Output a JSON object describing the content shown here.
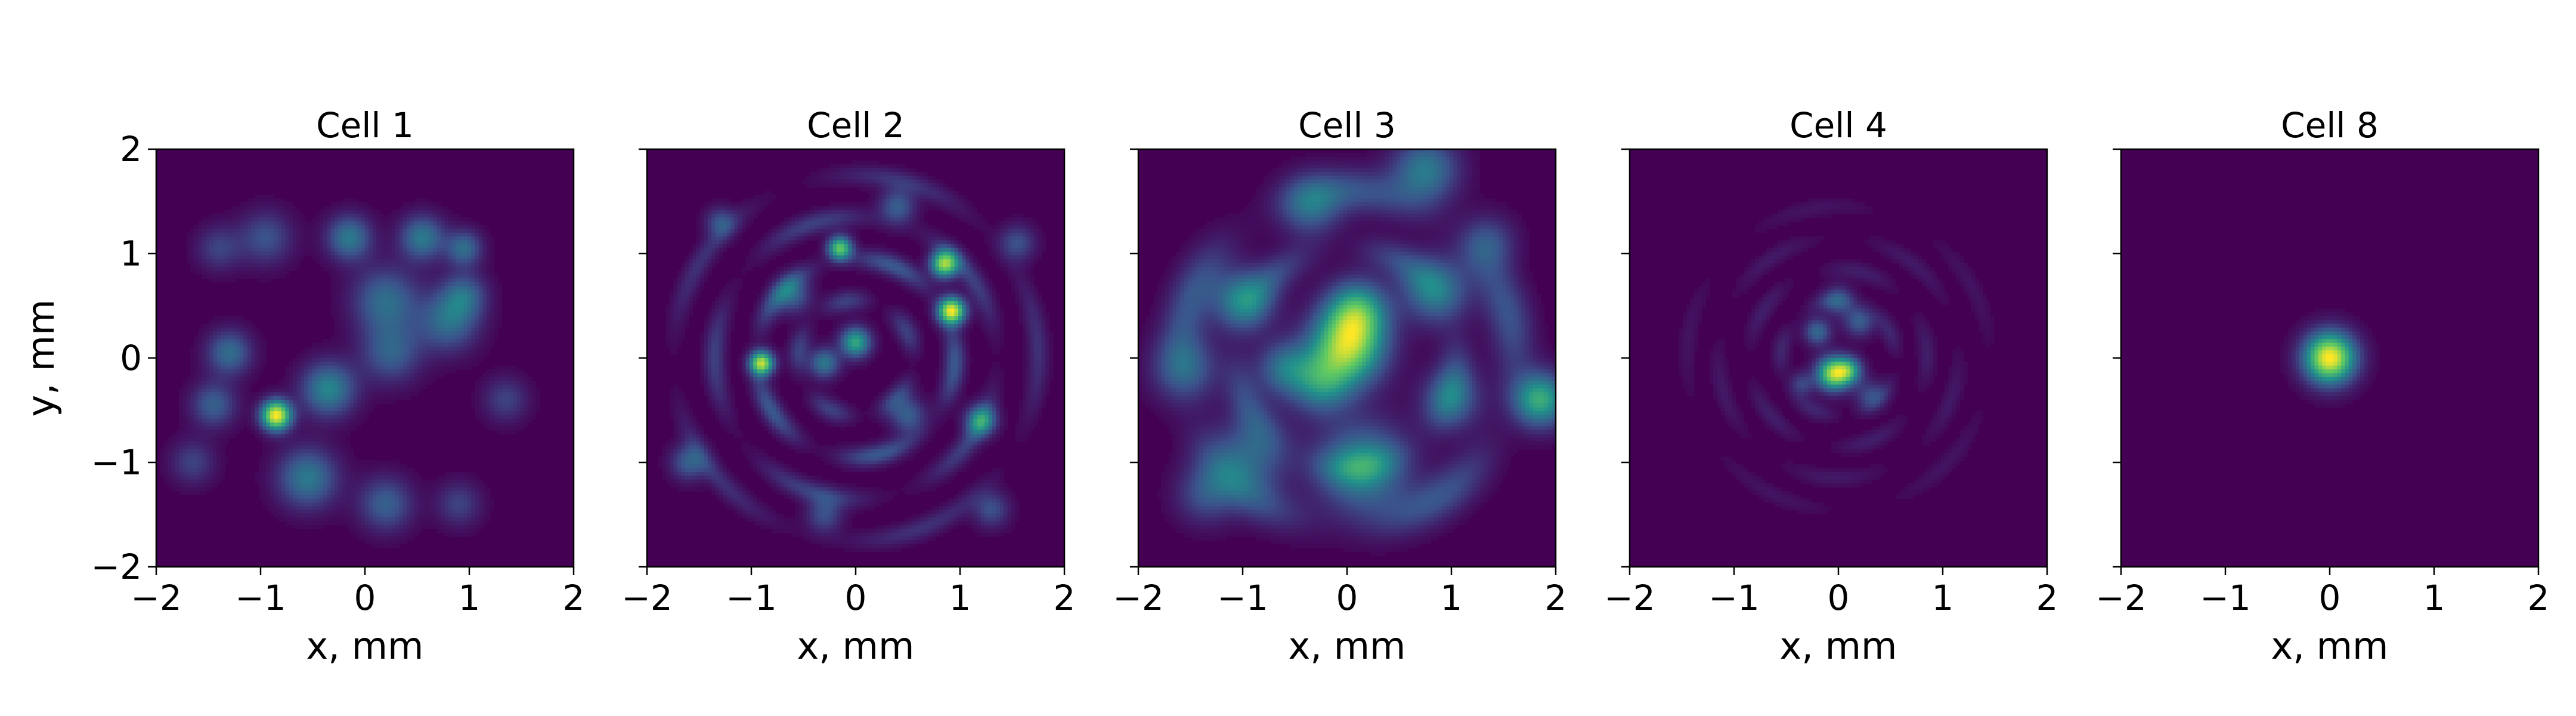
{
  "chart_data": {
    "type": "heatmap",
    "colormap": "viridis",
    "colors": [
      "#440154",
      "#3b528b",
      "#21918c",
      "#5ec962",
      "#fde725"
    ],
    "xlabel": "x, mm",
    "ylabel": "y, mm",
    "xlim": [
      -2,
      2
    ],
    "ylim": [
      -2,
      2
    ],
    "xticks": [
      -2,
      -1,
      0,
      1,
      2
    ],
    "yticks": [
      -2,
      -1,
      0,
      1,
      2
    ],
    "xtick_labels": [
      "−2",
      "−1",
      "0",
      "1",
      "2"
    ],
    "ytick_labels": [
      "−2",
      "−1",
      "0",
      "1",
      "2"
    ],
    "grid": false,
    "panels": [
      {
        "title": "Cell 1",
        "peaks": [
          {
            "x": -0.85,
            "y": -0.55,
            "sigma": 0.1,
            "intensity": 1.0
          },
          {
            "x": -0.35,
            "y": -0.3,
            "sigma": 0.18,
            "intensity": 0.45
          },
          {
            "x": -0.55,
            "y": -1.15,
            "sigma": 0.2,
            "intensity": 0.4
          },
          {
            "x": -1.3,
            "y": 0.05,
            "sigma": 0.15,
            "intensity": 0.35
          },
          {
            "x": -1.45,
            "y": -0.45,
            "sigma": 0.15,
            "intensity": 0.3
          },
          {
            "x": -0.15,
            "y": 1.15,
            "sigma": 0.15,
            "intensity": 0.4
          },
          {
            "x": 0.55,
            "y": 1.15,
            "sigma": 0.15,
            "intensity": 0.4
          },
          {
            "x": 0.95,
            "y": 1.05,
            "sigma": 0.12,
            "intensity": 0.35
          },
          {
            "x": 0.2,
            "y": 0.55,
            "sigma": 0.22,
            "intensity": 0.35
          },
          {
            "x": 0.25,
            "y": 0.05,
            "sigma": 0.2,
            "intensity": 0.3
          },
          {
            "x": 0.8,
            "y": 0.35,
            "sigma": 0.2,
            "intensity": 0.35
          },
          {
            "x": 0.95,
            "y": 0.6,
            "sigma": 0.15,
            "intensity": 0.3
          },
          {
            "x": -0.95,
            "y": 1.15,
            "sigma": 0.18,
            "intensity": 0.25
          },
          {
            "x": -1.4,
            "y": 1.05,
            "sigma": 0.15,
            "intensity": 0.2
          },
          {
            "x": 0.2,
            "y": -1.4,
            "sigma": 0.18,
            "intensity": 0.3
          },
          {
            "x": 0.9,
            "y": -1.4,
            "sigma": 0.15,
            "intensity": 0.2
          },
          {
            "x": 1.35,
            "y": -0.4,
            "sigma": 0.15,
            "intensity": 0.2
          },
          {
            "x": -1.65,
            "y": -1.0,
            "sigma": 0.15,
            "intensity": 0.2
          }
        ]
      },
      {
        "title": "Cell 2",
        "peaks": [
          {
            "x": 0.92,
            "y": 0.45,
            "sigma": 0.09,
            "intensity": 1.0
          },
          {
            "x": 0.85,
            "y": 0.9,
            "sigma": 0.09,
            "intensity": 0.85
          },
          {
            "x": -0.9,
            "y": -0.05,
            "sigma": 0.08,
            "intensity": 0.9
          },
          {
            "x": -0.15,
            "y": 1.05,
            "sigma": 0.08,
            "intensity": 0.75
          },
          {
            "x": 0.0,
            "y": 0.15,
            "sigma": 0.1,
            "intensity": 0.6
          },
          {
            "x": -0.3,
            "y": -0.05,
            "sigma": 0.1,
            "intensity": 0.4
          },
          {
            "x": 1.2,
            "y": -0.6,
            "sigma": 0.1,
            "intensity": 0.5
          },
          {
            "x": -0.6,
            "y": 0.6,
            "sigma": 0.12,
            "intensity": 0.3
          },
          {
            "x": 0.5,
            "y": -0.55,
            "sigma": 0.12,
            "intensity": 0.3
          },
          {
            "x": -1.6,
            "y": -1.0,
            "sigma": 0.12,
            "intensity": 0.3
          },
          {
            "x": 1.55,
            "y": 1.1,
            "sigma": 0.12,
            "intensity": 0.25
          },
          {
            "x": -1.3,
            "y": 1.3,
            "sigma": 0.1,
            "intensity": 0.25
          },
          {
            "x": 1.3,
            "y": -1.45,
            "sigma": 0.12,
            "intensity": 0.25
          },
          {
            "x": 0.4,
            "y": 1.45,
            "sigma": 0.12,
            "intensity": 0.3
          },
          {
            "x": -0.3,
            "y": -1.5,
            "sigma": 0.12,
            "intensity": 0.25
          }
        ],
        "rings": [
          {
            "radius": 0.95,
            "width": 0.07,
            "intensity": 0.28
          },
          {
            "radius": 1.35,
            "width": 0.07,
            "intensity": 0.2
          },
          {
            "radius": 0.55,
            "width": 0.07,
            "intensity": 0.2
          },
          {
            "radius": 1.75,
            "width": 0.07,
            "intensity": 0.15
          }
        ]
      },
      {
        "title": "Cell 3",
        "peaks": [
          {
            "x": 0.0,
            "y": 0.1,
            "sigma": 0.25,
            "intensity": 0.8
          },
          {
            "x": 0.1,
            "y": 0.45,
            "sigma": 0.2,
            "intensity": 0.55
          },
          {
            "x": -0.25,
            "y": -0.25,
            "sigma": 0.2,
            "intensity": 0.4
          },
          {
            "x": 1.85,
            "y": -0.4,
            "sigma": 0.18,
            "intensity": 0.6
          },
          {
            "x": 0.15,
            "y": -1.05,
            "sigma": 0.3,
            "intensity": 0.45
          },
          {
            "x": -0.9,
            "y": -0.9,
            "sigma": 0.25,
            "intensity": 0.3
          },
          {
            "x": -1.0,
            "y": 0.55,
            "sigma": 0.2,
            "intensity": 0.45
          },
          {
            "x": -0.6,
            "y": -0.1,
            "sigma": 0.18,
            "intensity": 0.35
          },
          {
            "x": 0.85,
            "y": 0.65,
            "sigma": 0.22,
            "intensity": 0.4
          },
          {
            "x": 1.0,
            "y": -0.4,
            "sigma": 0.2,
            "intensity": 0.3
          },
          {
            "x": 0.75,
            "y": 1.8,
            "sigma": 0.22,
            "intensity": 0.4
          },
          {
            "x": -1.55,
            "y": -0.1,
            "sigma": 0.22,
            "intensity": 0.3
          },
          {
            "x": -1.35,
            "y": -1.3,
            "sigma": 0.2,
            "intensity": 0.25
          },
          {
            "x": 1.35,
            "y": 1.1,
            "sigma": 0.18,
            "intensity": 0.25
          },
          {
            "x": -0.35,
            "y": 1.45,
            "sigma": 0.2,
            "intensity": 0.3
          }
        ],
        "rings": [
          {
            "radius": 1.6,
            "width": 0.15,
            "intensity": 0.25
          },
          {
            "radius": 1.05,
            "width": 0.12,
            "intensity": 0.2
          }
        ]
      },
      {
        "title": "Cell 4",
        "peaks": [
          {
            "x": -0.05,
            "y": -0.15,
            "sigma": 0.11,
            "intensity": 1.0
          },
          {
            "x": 0.1,
            "y": -0.12,
            "sigma": 0.09,
            "intensity": 0.6
          },
          {
            "x": -0.2,
            "y": 0.25,
            "sigma": 0.09,
            "intensity": 0.4
          },
          {
            "x": 0.2,
            "y": 0.35,
            "sigma": 0.1,
            "intensity": 0.35
          },
          {
            "x": 0.0,
            "y": 0.55,
            "sigma": 0.1,
            "intensity": 0.3
          },
          {
            "x": 0.3,
            "y": -0.35,
            "sigma": 0.1,
            "intensity": 0.25
          },
          {
            "x": -0.35,
            "y": -0.25,
            "sigma": 0.08,
            "intensity": 0.25
          }
        ],
        "rings": [
          {
            "radius": 0.55,
            "width": 0.06,
            "intensity": 0.14
          },
          {
            "radius": 0.85,
            "width": 0.06,
            "intensity": 0.11
          },
          {
            "radius": 1.15,
            "width": 0.06,
            "intensity": 0.09
          },
          {
            "radius": 1.45,
            "width": 0.06,
            "intensity": 0.07
          }
        ]
      },
      {
        "title": "Cell 8",
        "peaks": [
          {
            "x": 0.0,
            "y": 0.0,
            "sigma": 0.17,
            "intensity": 1.0
          }
        ]
      }
    ]
  }
}
